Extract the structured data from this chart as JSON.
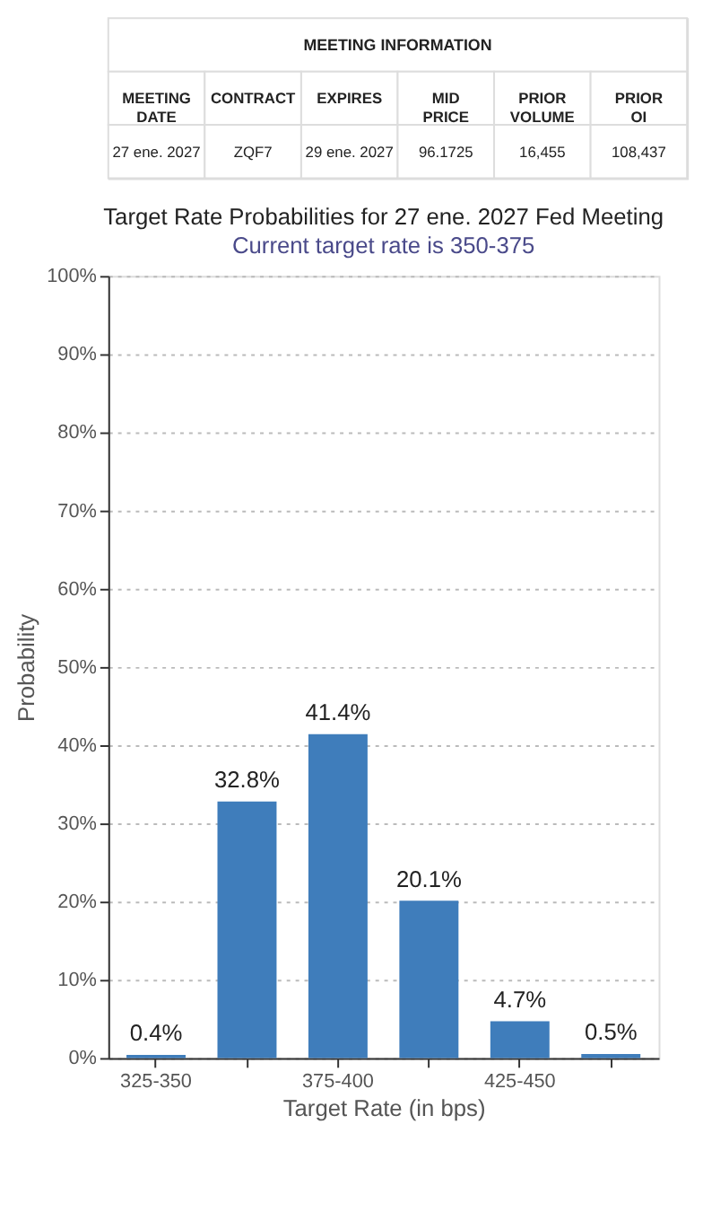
{
  "chart_data": [
    {
      "type": "other",
      "title": "MEETING INFORMATION",
      "categories": [
        "MEETING DATE",
        "CONTRACT",
        "EXPIRES",
        "MID PRICE",
        "PRIOR VOLUME",
        "PRIOR OI"
      ],
      "cell_labels": [
        [
          "27 ene. 2027",
          "ZQF7",
          "29 ene. 2027",
          "96.1725",
          "16,455",
          "108,437"
        ]
      ]
    },
    {
      "type": "bar",
      "title": "Target Rate Probabilities for 27 ene. 2027 Fed Meeting",
      "subtitle": "Current target rate is 350-375",
      "xlabel": "Target Rate (in bps)",
      "ylabel": "Probability",
      "categories": [
        "325-350",
        null,
        "375-400",
        null,
        "425-450",
        null
      ],
      "values": [
        0.4,
        32.8,
        41.4,
        20.1,
        4.7,
        0.5
      ],
      "value_labels": [
        "0.4%",
        "32.8%",
        "41.4%",
        "20.1%",
        "4.7%",
        "0.5%"
      ],
      "color": "#3f7dbb",
      "ylim": [
        0,
        100
      ],
      "yticks": [
        {
          "value": 0,
          "label": "0%"
        },
        {
          "value": 10,
          "label": "10%"
        },
        {
          "value": 20,
          "label": "20%"
        },
        {
          "value": 30,
          "label": "30%"
        },
        {
          "value": 40,
          "label": "40%"
        },
        {
          "value": 50,
          "label": "50%"
        },
        {
          "value": 60,
          "label": "60%"
        },
        {
          "value": 70,
          "label": "70%"
        },
        {
          "value": 80,
          "label": "80%"
        },
        {
          "value": 90,
          "label": "90%"
        },
        {
          "value": 100,
          "label": "100%"
        }
      ],
      "grid": "y"
    }
  ]
}
